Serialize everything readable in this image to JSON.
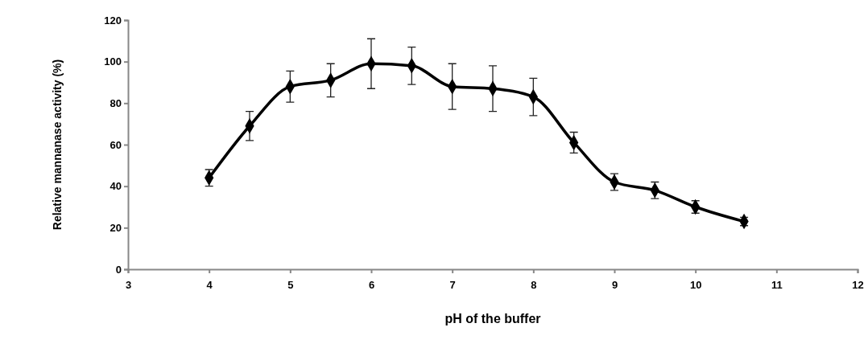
{
  "chart_data": {
    "type": "line",
    "xlabel": "pH of the buffer",
    "ylabel": "Relative mannanase activity (%)",
    "x": [
      4,
      4.5,
      5,
      5.5,
      6,
      6.5,
      7,
      7.5,
      8,
      8.5,
      9,
      9.5,
      10,
      10.6
    ],
    "series": [
      {
        "color": "#000000",
        "values": [
          44,
          69,
          88,
          91,
          99,
          98,
          88,
          87,
          83,
          61,
          42,
          38,
          30,
          23
        ],
        "errors": [
          4,
          7,
          7.5,
          8,
          12,
          9,
          11,
          11,
          9,
          5,
          4,
          4,
          3,
          2
        ]
      }
    ],
    "xlim": [
      3,
      12
    ],
    "xticks": [
      3,
      4,
      5,
      6,
      7,
      8,
      9,
      10,
      11,
      12
    ],
    "ylim": [
      0,
      120
    ],
    "yticks": [
      0,
      20,
      40,
      60,
      80,
      100,
      120
    ],
    "grid": false,
    "marker": "diamond",
    "line_style": "solid"
  }
}
